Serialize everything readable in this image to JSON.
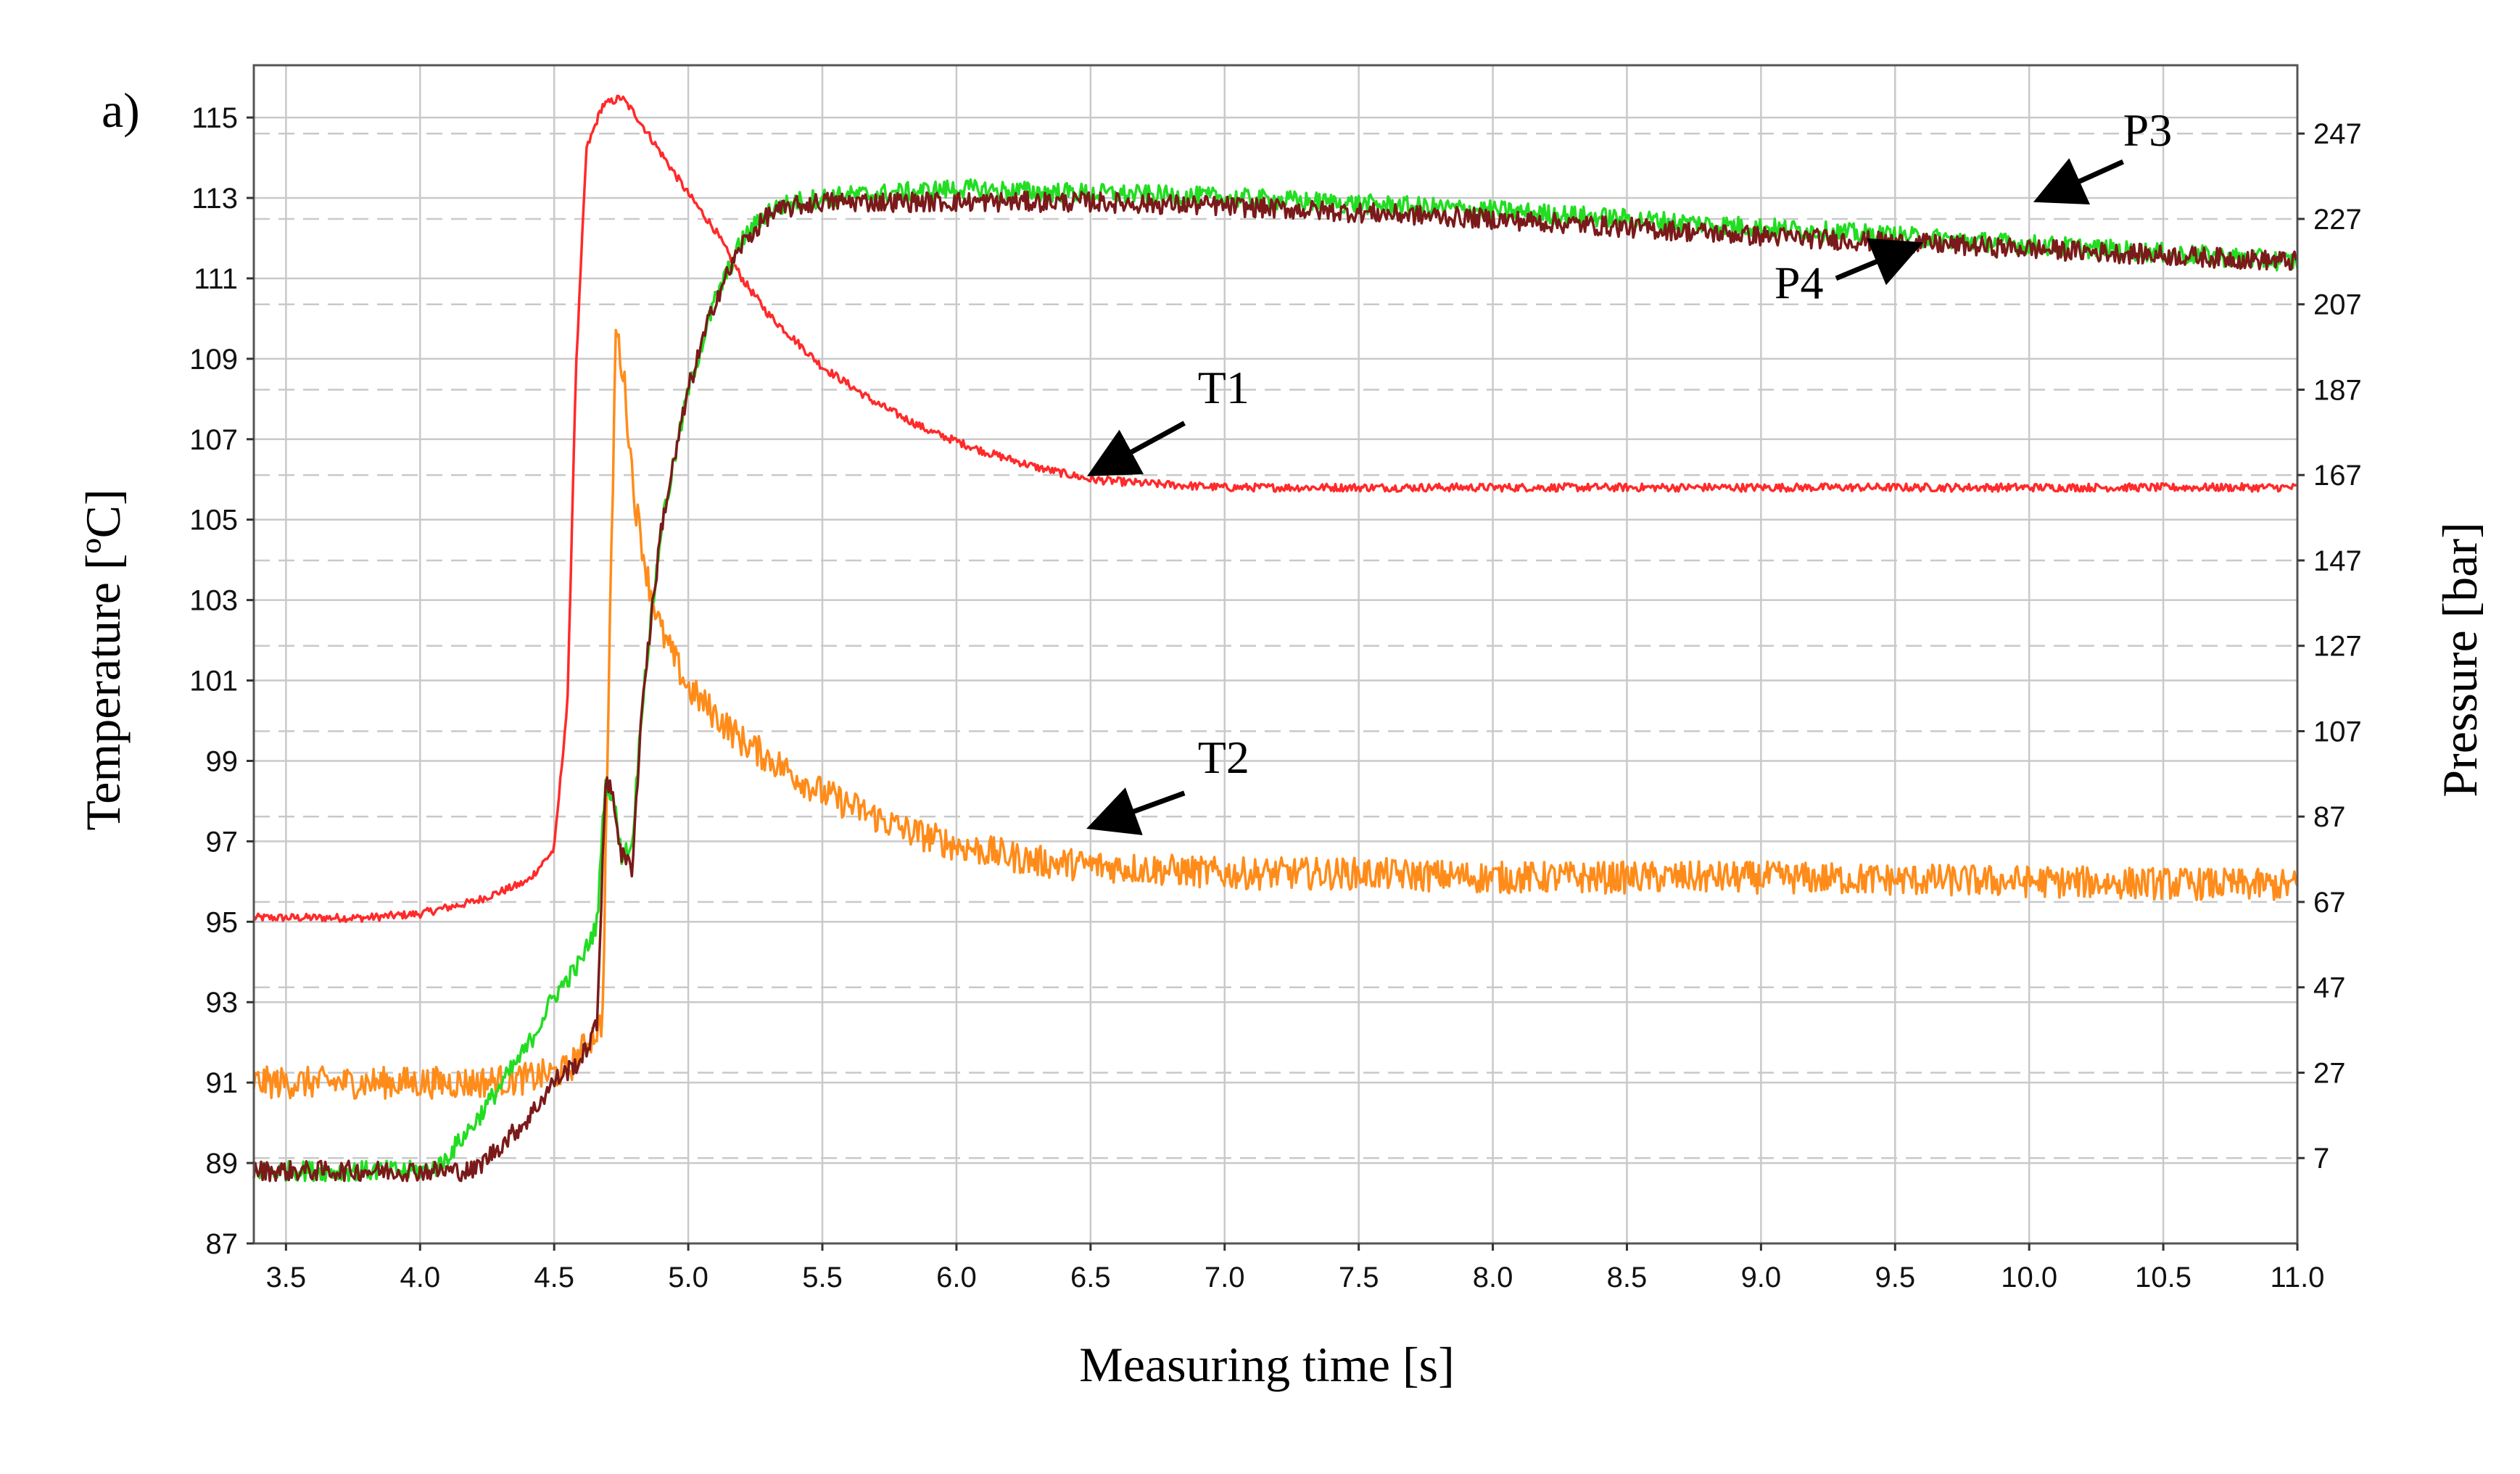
{
  "chart_data": {
    "type": "line",
    "panel_label": "a)",
    "xlabel": "Measuring time [s]",
    "ylabel": "Temperature [ºC]",
    "y2label": "Pressure [bar]",
    "xlim": [
      3.38,
      11.0
    ],
    "ylim": [
      87,
      116.3
    ],
    "y2lim": [
      -13,
      263
    ],
    "x_ticks": [
      3.5,
      4.0,
      4.5,
      5.0,
      5.5,
      6.0,
      6.5,
      7.0,
      7.5,
      8.0,
      8.5,
      9.0,
      9.5,
      10.0,
      10.5,
      11.0
    ],
    "x_tick_labels": [
      "3.5",
      "4.0",
      "4.5",
      "5.0",
      "5.5",
      "6.0",
      "6.5",
      "7.0",
      "7.5",
      "8.0",
      "8.5",
      "9.0",
      "9.5",
      "10.0",
      "10.5",
      "11.0"
    ],
    "y_ticks": [
      87,
      89,
      91,
      93,
      95,
      97,
      99,
      101,
      103,
      105,
      107,
      109,
      111,
      113,
      115
    ],
    "y_tick_labels": [
      "87",
      "89",
      "91",
      "93",
      "95",
      "97",
      "99",
      "101",
      "103",
      "105",
      "107",
      "109",
      "111",
      "113",
      "115"
    ],
    "y2_ticks": [
      7,
      27,
      47,
      67,
      87,
      107,
      127,
      147,
      167,
      187,
      207,
      227,
      247
    ],
    "y2_tick_labels": [
      "7",
      "27",
      "47",
      "67",
      "87",
      "107",
      "127",
      "147",
      "167",
      "187",
      "207",
      "227",
      "247"
    ],
    "series": [
      {
        "name": "T1",
        "axis": "left",
        "color": "#ff2a2a",
        "noise": 0.1,
        "x": [
          3.38,
          3.6,
          3.8,
          4.0,
          4.2,
          4.4,
          4.5,
          4.55,
          4.58,
          4.62,
          4.68,
          4.75,
          4.8,
          4.9,
          5.0,
          5.1,
          5.2,
          5.3,
          5.5,
          5.7,
          5.9,
          6.1,
          6.3,
          6.5,
          6.7,
          7.0,
          7.5,
          8.0,
          9.0,
          10.0,
          11.0
        ],
        "values": [
          95.1,
          95.1,
          95.1,
          95.2,
          95.5,
          96.0,
          96.8,
          100.5,
          108.5,
          114.2,
          115.3,
          115.5,
          115.1,
          114.1,
          113.1,
          112.2,
          111.0,
          110.1,
          108.8,
          107.9,
          107.2,
          106.7,
          106.3,
          106.0,
          105.9,
          105.8,
          105.8,
          105.8,
          105.8,
          105.8,
          105.8
        ]
      },
      {
        "name": "T2",
        "axis": "left",
        "color": "#ff8c1a",
        "noise": 0.4,
        "x": [
          3.38,
          3.6,
          3.8,
          4.0,
          4.2,
          4.4,
          4.55,
          4.68,
          4.7,
          4.73,
          4.76,
          4.8,
          4.85,
          4.9,
          5.0,
          5.2,
          5.5,
          5.8,
          6.0,
          6.3,
          6.5,
          7.0,
          7.5,
          8.0,
          9.0,
          10.0,
          11.0
        ],
        "values": [
          91.0,
          91.0,
          91.0,
          91.0,
          91.0,
          91.1,
          91.3,
          92.5,
          99.5,
          109.8,
          108.5,
          105.5,
          103.5,
          102.2,
          100.8,
          99.5,
          98.2,
          97.3,
          96.9,
          96.5,
          96.4,
          96.2,
          96.2,
          96.1,
          96.1,
          96.0,
          95.9
        ]
      },
      {
        "name": "P3",
        "axis": "right",
        "color": "#22dd22",
        "noise": 0.25,
        "x": [
          3.38,
          4.0,
          4.07,
          4.2,
          4.4,
          4.5,
          4.6,
          4.66,
          4.69,
          4.72,
          4.75,
          4.79,
          4.83,
          4.9,
          5.0,
          5.1,
          5.2,
          5.3,
          5.4,
          5.5,
          6.0,
          6.5,
          7.0,
          8.0,
          9.0,
          10.0,
          11.0
        ],
        "values": [
          4,
          4,
          5,
          15,
          33,
          45,
          53,
          62,
          95,
          92,
          78,
          80,
          115,
          155,
          187,
          208,
          222,
          229,
          231,
          232,
          234,
          233,
          232,
          229,
          225,
          221,
          217
        ]
      },
      {
        "name": "P4",
        "axis": "right",
        "color": "#7a1a1a",
        "noise": 0.25,
        "x": [
          3.38,
          4.0,
          4.2,
          4.4,
          4.5,
          4.6,
          4.66,
          4.69,
          4.72,
          4.75,
          4.79,
          4.83,
          4.9,
          5.0,
          5.1,
          5.2,
          5.3,
          5.4,
          5.5,
          6.0,
          6.5,
          7.0,
          8.0,
          9.0,
          10.0,
          11.0
        ],
        "values": [
          4,
          4,
          4,
          16,
          25,
          30,
          38,
          95,
          92,
          78,
          75,
          115,
          155,
          187,
          208,
          221,
          228,
          230,
          231,
          231,
          231,
          230,
          227,
          223,
          220,
          217
        ]
      }
    ],
    "annotations": [
      {
        "label": "T1",
        "text_x": 6.9,
        "text_y": 107.9,
        "arrow_from": [
          6.85,
          107.4
        ],
        "arrow_to": [
          6.52,
          106.2
        ]
      },
      {
        "label": "T2",
        "text_x": 6.9,
        "text_y": 98.7,
        "arrow_from": [
          6.85,
          98.2
        ],
        "arrow_to": [
          6.52,
          97.4
        ]
      },
      {
        "label": "P3",
        "text_x": 10.35,
        "text_y": 114.3,
        "arrow_from": [
          10.35,
          113.9
        ],
        "arrow_to": [
          10.05,
          113.0
        ]
      },
      {
        "label": "P4",
        "text_x": 9.05,
        "text_y": 110.5,
        "arrow_from": [
          9.28,
          111.0
        ],
        "arrow_to": [
          9.57,
          111.8
        ]
      }
    ]
  }
}
